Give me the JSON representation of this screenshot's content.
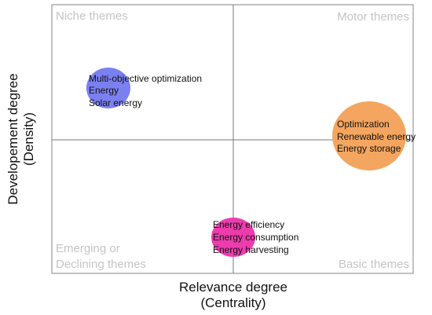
{
  "chart_data": {
    "type": "scatter",
    "title": "",
    "xlabel": [
      "Relevance degree",
      "(Centrality)"
    ],
    "ylabel": [
      "Developement degree",
      "(Density)"
    ],
    "grid": false,
    "quadrants": {
      "top_left": [
        "Niche themes"
      ],
      "top_right": [
        "Motor themes"
      ],
      "bottom_left": [
        "Emerging or",
        "Declining themes"
      ],
      "bottom_right": [
        "Basic themes"
      ]
    },
    "clusters": [
      {
        "quadrant": "top-left",
        "color": "#7b80f0",
        "terms": [
          "Multi-objective optimization",
          "Energy",
          "Solar energy"
        ]
      },
      {
        "quadrant": "top-right",
        "color": "#f4a55f",
        "terms": [
          "Optimization",
          "Renewable energy",
          "Energy storage"
        ]
      },
      {
        "quadrant": "bottom-center",
        "color": "#ec3cad",
        "terms": [
          "Energy efficiency",
          "Energy consumption",
          "Energy harvesting"
        ]
      }
    ]
  }
}
